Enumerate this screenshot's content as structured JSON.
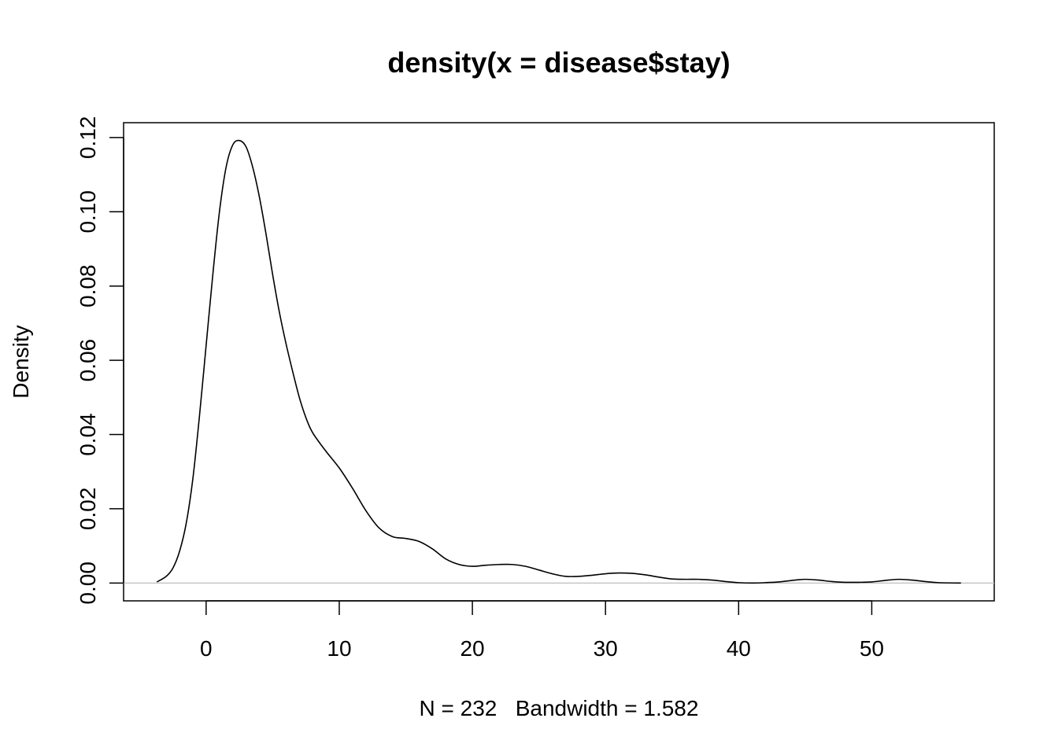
{
  "chart_data": {
    "type": "line",
    "title": "density(x = disease$stay)",
    "xlabel": "N = 232   Bandwidth = 1.582",
    "ylabel": "Density",
    "xlim": [
      -6.2,
      59.2
    ],
    "ylim": [
      -0.0048,
      0.124
    ],
    "x_ticks": [
      0,
      10,
      20,
      30,
      40,
      50
    ],
    "x_tick_labels": [
      "0",
      "10",
      "20",
      "30",
      "40",
      "50"
    ],
    "y_ticks": [
      0.0,
      0.02,
      0.04,
      0.06,
      0.08,
      0.1,
      0.12
    ],
    "y_tick_labels": [
      "0.00",
      "0.02",
      "0.04",
      "0.06",
      "0.08",
      "0.10",
      "0.12"
    ],
    "baseline": 0,
    "grid": false,
    "line_color": "#000000",
    "baseline_color": "#bebebe",
    "series": [
      {
        "x": [
          -3.7,
          -3.0,
          -2.5,
          -2.0,
          -1.5,
          -1.0,
          -0.5,
          0.0,
          0.5,
          1.0,
          1.5,
          2.0,
          2.5,
          3.0,
          3.5,
          4.0,
          4.5,
          5.0,
          5.5,
          6.0,
          6.5,
          7.0,
          7.5,
          8.0,
          9.0,
          10.0,
          11.0,
          12.0,
          13.0,
          14.0,
          15.0,
          16.0,
          17.0,
          18.0,
          19.0,
          20.0,
          21.0,
          22.0,
          23.0,
          24.0,
          25.0,
          26.0,
          27.0,
          28.0,
          29.0,
          30.0,
          31.0,
          32.0,
          33.0,
          34.0,
          35.0,
          36.0,
          37.0,
          38.0,
          39.0,
          40.0,
          41.0,
          42.0,
          43.0,
          44.0,
          45.0,
          46.0,
          47.0,
          48.0,
          49.0,
          50.0,
          51.0,
          52.0,
          53.0,
          54.0,
          55.0,
          56.7
        ],
        "y": [
          0.0003,
          0.0018,
          0.004,
          0.0085,
          0.016,
          0.028,
          0.045,
          0.064,
          0.083,
          0.1,
          0.112,
          0.118,
          0.1192,
          0.1175,
          0.112,
          0.104,
          0.094,
          0.083,
          0.073,
          0.0645,
          0.057,
          0.05,
          0.0445,
          0.0405,
          0.0355,
          0.031,
          0.0255,
          0.0195,
          0.0148,
          0.0125,
          0.012,
          0.0112,
          0.0092,
          0.0065,
          0.005,
          0.0045,
          0.0048,
          0.005,
          0.005,
          0.0045,
          0.0035,
          0.0025,
          0.0018,
          0.0018,
          0.0021,
          0.0025,
          0.0027,
          0.0026,
          0.0022,
          0.0016,
          0.0011,
          0.001,
          0.001,
          0.0008,
          0.0004,
          0.0001,
          0.0,
          0.0001,
          0.0003,
          0.0007,
          0.001,
          0.0008,
          0.0004,
          0.0002,
          0.0002,
          0.0003,
          0.0007,
          0.001,
          0.0008,
          0.0004,
          0.0001,
          0.0
        ]
      }
    ]
  }
}
